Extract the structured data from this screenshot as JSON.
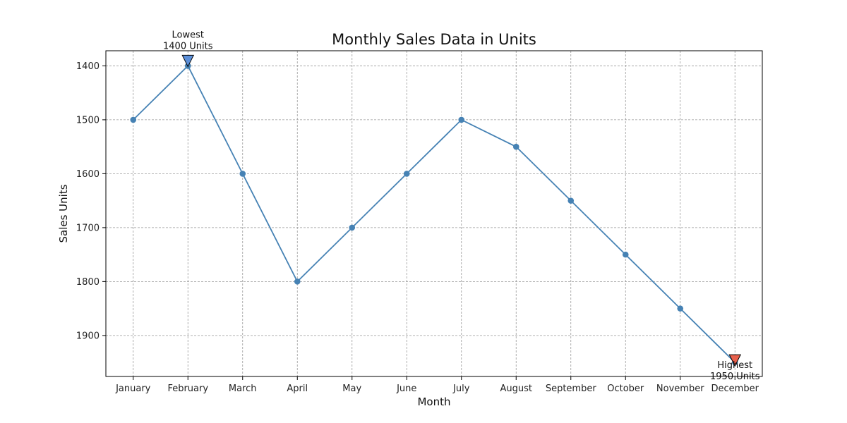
{
  "chart_data": {
    "type": "line",
    "title": "Monthly Sales Data in Units",
    "xlabel": "Month",
    "ylabel": "Sales Units",
    "categories": [
      "January",
      "February",
      "March",
      "April",
      "May",
      "June",
      "July",
      "August",
      "September",
      "October",
      "November",
      "December"
    ],
    "series": [
      {
        "values": [
          1500,
          1400,
          1600,
          1800,
          1700,
          1600,
          1500,
          1550,
          1650,
          1750,
          1850,
          1950
        ]
      }
    ],
    "y_ticks": [
      1400,
      1500,
      1600,
      1700,
      1800,
      1900
    ],
    "ylim": [
      1372,
      1976
    ],
    "y_inverted": true,
    "grid": true,
    "colors": {
      "line": "#4682b4",
      "marker": "#4682b4",
      "lowest_marker": "#5b8fd9",
      "highest_marker": "#e8604c",
      "grid": "#999999"
    },
    "annotations": [
      {
        "category": "February",
        "value": 1400,
        "lines": [
          "Lowest",
          "1400 Units"
        ],
        "kind": "lowest"
      },
      {
        "category": "December",
        "value": 1950,
        "lines": [
          "Highest",
          "1950 Units"
        ],
        "kind": "highest"
      }
    ]
  }
}
